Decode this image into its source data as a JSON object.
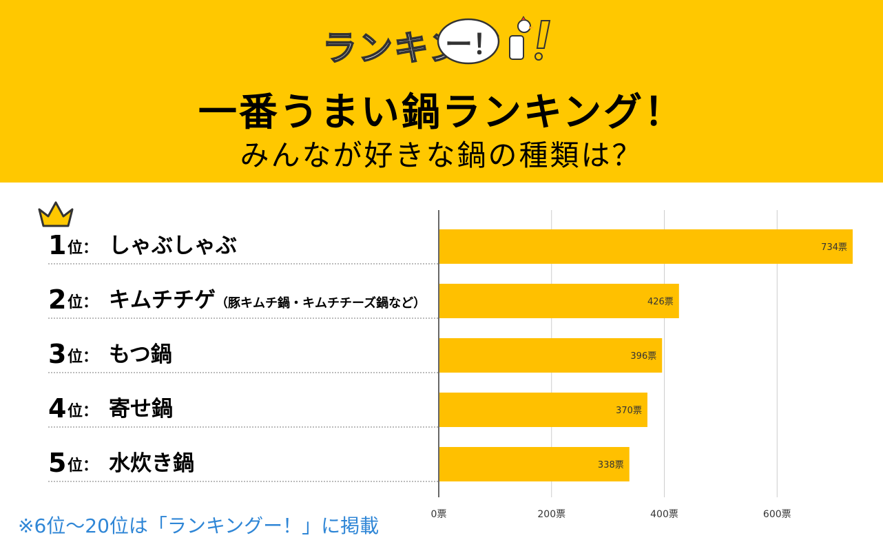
{
  "header": {
    "logo_text": "ランキング",
    "logo_mark": "ー！",
    "title": "一番うまい鍋ランキング！",
    "subtitle": "みんなが好きな鍋の種類は？"
  },
  "colors": {
    "header_bg": "#FFC800",
    "bar": "#FFC000",
    "gridline": "#cccccc",
    "axis": "#333333",
    "footer_text": "#2F86D6"
  },
  "rank_suffix": "位：",
  "ranks": [
    {
      "num": "1",
      "name": "しゃぶしゃぶ",
      "note": ""
    },
    {
      "num": "2",
      "name": "キムチチゲ",
      "note": "（豚キムチ鍋・キムチチーズ鍋など）"
    },
    {
      "num": "3",
      "name": "もつ鍋",
      "note": ""
    },
    {
      "num": "4",
      "name": "寄せ鍋",
      "note": ""
    },
    {
      "num": "5",
      "name": "水炊き鍋",
      "note": ""
    }
  ],
  "chart_data": {
    "type": "bar",
    "orientation": "horizontal",
    "categories": [
      "しゃぶしゃぶ",
      "キムチチゲ",
      "もつ鍋",
      "寄せ鍋",
      "水炊き鍋"
    ],
    "values": [
      734,
      426,
      396,
      370,
      338
    ],
    "value_labels": [
      "734票",
      "426票",
      "396票",
      "370票",
      "338票"
    ],
    "unit": "票",
    "xlim": [
      0,
      734
    ],
    "xticks": [
      0,
      200,
      400,
      600
    ],
    "xtick_labels": [
      "0票",
      "200票",
      "400票",
      "600票"
    ],
    "grid": true,
    "title": "一番うまい鍋ランキング！"
  },
  "footer_note": "※6位〜20位は「ランキングー！」に掲載"
}
